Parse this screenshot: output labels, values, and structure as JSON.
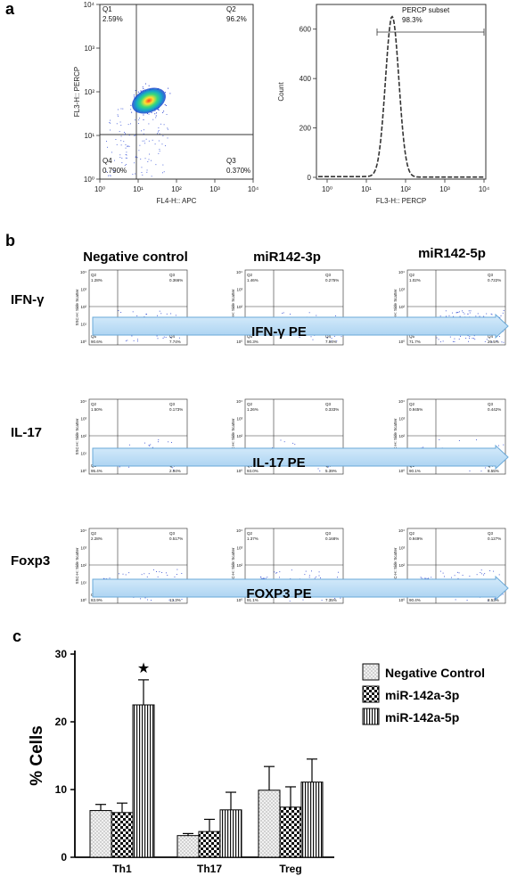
{
  "panel_a": {
    "letter": "a",
    "dot_plot": {
      "xlabel": "FL4-H:: APC",
      "ylabel": "FL3-H:: PERCP",
      "x_ticks": [
        "10⁰",
        "10¹",
        "10²",
        "10³",
        "10⁴"
      ],
      "y_ticks": [
        "10⁰",
        "10¹",
        "10²",
        "10³",
        "10⁴"
      ],
      "quadrants": [
        {
          "name": "Q1",
          "value": "2.59%"
        },
        {
          "name": "Q2",
          "value": "96.2%"
        },
        {
          "name": "Q3",
          "value": "0.370%"
        },
        {
          "name": "Q4",
          "value": "0.790%"
        }
      ]
    },
    "histogram": {
      "xlabel": "FL3-H:: PERCP",
      "ylabel": "Count",
      "x_ticks": [
        "10⁰",
        "10¹",
        "10²",
        "10³",
        "10⁴"
      ],
      "y_ticks": [
        "0",
        "200",
        "400",
        "600"
      ],
      "gate_name": "PERCP subset",
      "gate_value": "98.3%"
    }
  },
  "panel_b": {
    "letter": "b",
    "columns": [
      "Negative control",
      "miR142-3p",
      "miR142-5p"
    ],
    "rows": [
      {
        "label": "IFN-γ",
        "arrow": "IFN-γ PE",
        "plots": [
          {
            "q2": "1.28%",
            "q3": "0.366%",
            "q5": "90.6%",
            "q4": "7.74%"
          },
          {
            "q2": "1.46%",
            "q3": "0.275%",
            "q5": "90.3%",
            "q4": "7.94%"
          },
          {
            "q2": "1.02%",
            "q3": "0.722%",
            "q5": "71.7%",
            "q4": "26.5%"
          }
        ]
      },
      {
        "label": "IL-17",
        "arrow": "IL-17 PE",
        "plots": [
          {
            "q2": "1.50%",
            "q3": "0.173%",
            "q5": "95.4%",
            "q4": "2.94%"
          },
          {
            "q2": "1.26%",
            "q3": "0.333%",
            "q5": "93.0%",
            "q4": "5.39%"
          },
          {
            "q2": "0.945%",
            "q3": "0.442%",
            "q5": "90.1%",
            "q4": "8.55%"
          }
        ]
      },
      {
        "label": "Foxp3",
        "arrow": "FOXP3 PE",
        "plots": [
          {
            "q2": "2.28%",
            "q3": "0.517%",
            "q5": "83.9%",
            "q4": "13.3%"
          },
          {
            "q2": "1.37%",
            "q3": "0.168%",
            "q5": "91.1%",
            "q4": "7.35%"
          },
          {
            "q2": "0.949%",
            "q3": "0.127%",
            "q5": "90.4%",
            "q4": "8.53%"
          }
        ]
      }
    ],
    "y_axis_label": "SSC-H: Side Scatter"
  },
  "chart_data": {
    "type": "bar",
    "letter": "c",
    "title": "",
    "xlabel": "",
    "ylabel": "% Cells",
    "ylim": [
      0,
      30
    ],
    "yticks": [
      "0",
      "10",
      "20",
      "30"
    ],
    "categories": [
      "Th1",
      "Th17",
      "Treg"
    ],
    "series": [
      {
        "name": "Negative Control",
        "values": [
          6.9,
          3.2,
          9.9
        ],
        "errors": [
          0.9,
          0.3,
          3.5
        ]
      },
      {
        "name": "miR-142a-3p",
        "values": [
          6.6,
          3.8,
          7.4
        ],
        "errors": [
          1.4,
          1.8,
          3.0
        ]
      },
      {
        "name": "miR-142a-5p",
        "values": [
          22.5,
          7.0,
          11.1
        ],
        "errors": [
          3.7,
          2.6,
          3.4
        ]
      }
    ],
    "significance": {
      "marker": "★",
      "category": "Th1",
      "series": "miR-142a-5p"
    },
    "legend_position": "top-right"
  }
}
